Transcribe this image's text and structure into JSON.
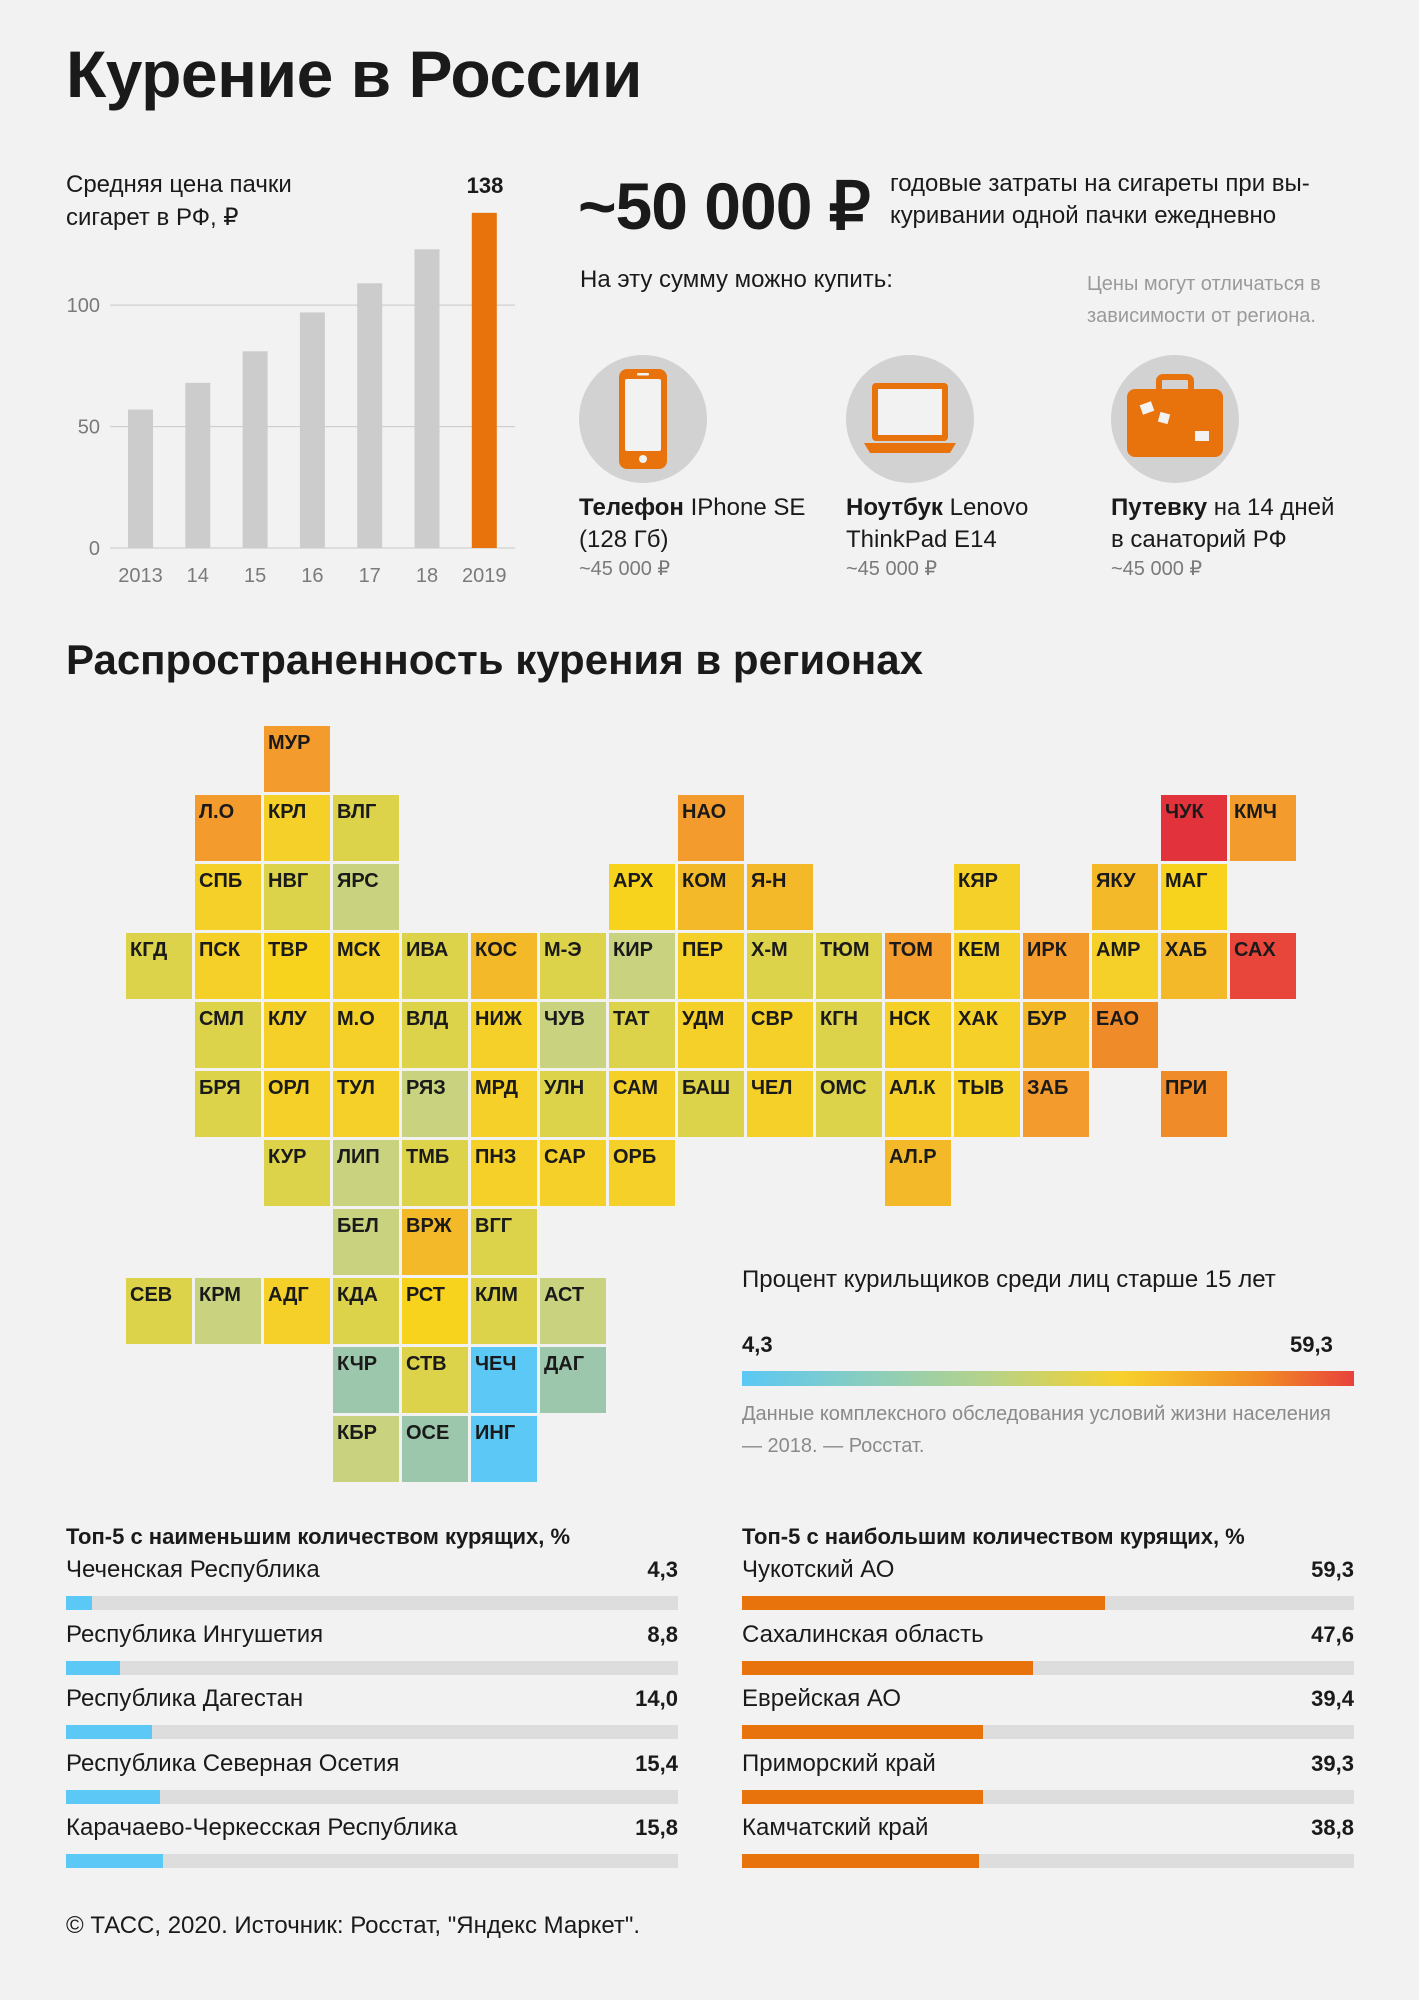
{
  "title": "Курение в России",
  "price_chart": {
    "label": "Средняя цена пачки сигарет в РФ, ₽",
    "highlight_value": "138"
  },
  "chart_data": [
    {
      "type": "bar",
      "categories": [
        "2013",
        "14",
        "15",
        "16",
        "17",
        "18",
        "2019"
      ],
      "values": [
        57,
        68,
        81,
        97,
        109,
        123,
        138
      ],
      "ylim": [
        0,
        140
      ],
      "yticks": [
        "0",
        "50",
        "100"
      ],
      "grid": true,
      "colors": {
        "default": "#cccccc",
        "highlight": "#e8720c"
      }
    },
    {
      "type": "bar",
      "title": "Топ-5 с наименьшим количеством курящих, %",
      "categories": [
        "Чеченская Республика",
        "Республика Ингушетия",
        "Республика Дагестан",
        "Республика Северная Осетия",
        "Карачаево-Черкесская Республика"
      ],
      "values": [
        4.3,
        8.8,
        14.0,
        15.4,
        15.8
      ],
      "labels": [
        "4,3",
        "8,8",
        "14,0",
        "15,4",
        "15,8"
      ],
      "xlim": [
        0,
        100
      ],
      "color": "#5bc8f5"
    },
    {
      "type": "bar",
      "title": "Топ-5 с наибольшим количеством курящих, %",
      "categories": [
        "Чукотский АО",
        "Сахалинская область",
        "Еврейская АО",
        "Приморский край",
        "Камчатский край"
      ],
      "values": [
        59.3,
        47.6,
        39.4,
        39.3,
        38.8
      ],
      "labels": [
        "59,3",
        "47,6",
        "39,4",
        "39,3",
        "38,8"
      ],
      "xlim": [
        0,
        100
      ],
      "color": "#e8720c"
    },
    {
      "type": "heatmap",
      "title": "Распространенность курения в регионах",
      "legend_title": "Процент курильщиков среди лиц старше 15 лет",
      "range_labels": [
        "4,3",
        "59,3"
      ],
      "colors": {
        "blue": "#5bc8f5",
        "teal": "#9cc7ac",
        "olive": "#c9d27e",
        "yellowgreen": "#dcd34a",
        "yellow": "#f4d028",
        "gold": "#f8d31e",
        "amber": "#f4b929",
        "orange": "#f39b2c",
        "deep-orange": "#f08b2a",
        "red": "#e8463b",
        "crimson": "#e2323c"
      },
      "cells": [
        {
          "code": "МУР",
          "row": 0,
          "col": 2,
          "color": "orange"
        },
        {
          "code": "Л.О",
          "row": 1,
          "col": 1,
          "color": "orange"
        },
        {
          "code": "КРЛ",
          "row": 1,
          "col": 2,
          "color": "yellow"
        },
        {
          "code": "ВЛГ",
          "row": 1,
          "col": 3,
          "color": "yellowgreen"
        },
        {
          "code": "НАО",
          "row": 1,
          "col": 8,
          "color": "orange"
        },
        {
          "code": "ЧУК",
          "row": 1,
          "col": 15,
          "color": "crimson"
        },
        {
          "code": "КМЧ",
          "row": 1,
          "col": 16,
          "color": "orange"
        },
        {
          "code": "СПБ",
          "row": 2,
          "col": 1,
          "color": "yellow"
        },
        {
          "code": "НВГ",
          "row": 2,
          "col": 2,
          "color": "yellowgreen"
        },
        {
          "code": "ЯРС",
          "row": 2,
          "col": 3,
          "color": "olive"
        },
        {
          "code": "АРХ",
          "row": 2,
          "col": 7,
          "color": "gold"
        },
        {
          "code": "КОМ",
          "row": 2,
          "col": 8,
          "color": "amber"
        },
        {
          "code": "Я-Н",
          "row": 2,
          "col": 9,
          "color": "amber"
        },
        {
          "code": "КЯР",
          "row": 2,
          "col": 12,
          "color": "yellow"
        },
        {
          "code": "ЯКУ",
          "row": 2,
          "col": 14,
          "color": "amber"
        },
        {
          "code": "МАГ",
          "row": 2,
          "col": 15,
          "color": "gold"
        },
        {
          "code": "КГД",
          "row": 3,
          "col": 0,
          "color": "yellowgreen"
        },
        {
          "code": "ПСК",
          "row": 3,
          "col": 1,
          "color": "yellow"
        },
        {
          "code": "ТВР",
          "row": 3,
          "col": 2,
          "color": "gold"
        },
        {
          "code": "МСК",
          "row": 3,
          "col": 3,
          "color": "yellow"
        },
        {
          "code": "ИВА",
          "row": 3,
          "col": 4,
          "color": "yellowgreen"
        },
        {
          "code": "КОС",
          "row": 3,
          "col": 5,
          "color": "amber"
        },
        {
          "code": "М-Э",
          "row": 3,
          "col": 6,
          "color": "yellowgreen"
        },
        {
          "code": "КИР",
          "row": 3,
          "col": 7,
          "color": "olive"
        },
        {
          "code": "ПЕР",
          "row": 3,
          "col": 8,
          "color": "yellow"
        },
        {
          "code": "Х-М",
          "row": 3,
          "col": 9,
          "color": "yellowgreen"
        },
        {
          "code": "ТЮМ",
          "row": 3,
          "col": 10,
          "color": "yellowgreen"
        },
        {
          "code": "ТОМ",
          "row": 3,
          "col": 11,
          "color": "orange"
        },
        {
          "code": "КЕМ",
          "row": 3,
          "col": 12,
          "color": "yellow"
        },
        {
          "code": "ИРК",
          "row": 3,
          "col": 13,
          "color": "orange"
        },
        {
          "code": "АМР",
          "row": 3,
          "col": 14,
          "color": "yellow"
        },
        {
          "code": "ХАБ",
          "row": 3,
          "col": 15,
          "color": "amber"
        },
        {
          "code": "САХ",
          "row": 3,
          "col": 16,
          "color": "red"
        },
        {
          "code": "СМЛ",
          "row": 4,
          "col": 1,
          "color": "yellowgreen"
        },
        {
          "code": "КЛУ",
          "row": 4,
          "col": 2,
          "color": "yellow"
        },
        {
          "code": "М.О",
          "row": 4,
          "col": 3,
          "color": "yellow"
        },
        {
          "code": "ВЛД",
          "row": 4,
          "col": 4,
          "color": "yellowgreen"
        },
        {
          "code": "НИЖ",
          "row": 4,
          "col": 5,
          "color": "yellow"
        },
        {
          "code": "ЧУВ",
          "row": 4,
          "col": 6,
          "color": "olive"
        },
        {
          "code": "ТАТ",
          "row": 4,
          "col": 7,
          "color": "yellowgreen"
        },
        {
          "code": "УДМ",
          "row": 4,
          "col": 8,
          "color": "yellow"
        },
        {
          "code": "СВР",
          "row": 4,
          "col": 9,
          "color": "yellow"
        },
        {
          "code": "КГН",
          "row": 4,
          "col": 10,
          "color": "yellowgreen"
        },
        {
          "code": "НСК",
          "row": 4,
          "col": 11,
          "color": "yellow"
        },
        {
          "code": "ХАК",
          "row": 4,
          "col": 12,
          "color": "yellow"
        },
        {
          "code": "БУР",
          "row": 4,
          "col": 13,
          "color": "amber"
        },
        {
          "code": "ЕАО",
          "row": 4,
          "col": 14,
          "color": "deep-orange"
        },
        {
          "code": "БРЯ",
          "row": 5,
          "col": 1,
          "color": "yellowgreen"
        },
        {
          "code": "ОРЛ",
          "row": 5,
          "col": 2,
          "color": "yellow"
        },
        {
          "code": "ТУЛ",
          "row": 5,
          "col": 3,
          "color": "yellow"
        },
        {
          "code": "РЯЗ",
          "row": 5,
          "col": 4,
          "color": "olive"
        },
        {
          "code": "МРД",
          "row": 5,
          "col": 5,
          "color": "yellow"
        },
        {
          "code": "УЛН",
          "row": 5,
          "col": 6,
          "color": "yellowgreen"
        },
        {
          "code": "САМ",
          "row": 5,
          "col": 7,
          "color": "yellow"
        },
        {
          "code": "БАШ",
          "row": 5,
          "col": 8,
          "color": "yellowgreen"
        },
        {
          "code": "ЧЕЛ",
          "row": 5,
          "col": 9,
          "color": "yellow"
        },
        {
          "code": "ОМС",
          "row": 5,
          "col": 10,
          "color": "yellowgreen"
        },
        {
          "code": "АЛ.К",
          "row": 5,
          "col": 11,
          "color": "yellow"
        },
        {
          "code": "ТЫВ",
          "row": 5,
          "col": 12,
          "color": "yellow"
        },
        {
          "code": "ЗАБ",
          "row": 5,
          "col": 13,
          "color": "orange"
        },
        {
          "code": "ПРИ",
          "row": 5,
          "col": 15,
          "color": "deep-orange"
        },
        {
          "code": "КУР",
          "row": 6,
          "col": 2,
          "color": "yellowgreen"
        },
        {
          "code": "ЛИП",
          "row": 6,
          "col": 3,
          "color": "olive"
        },
        {
          "code": "ТМБ",
          "row": 6,
          "col": 4,
          "color": "yellowgreen"
        },
        {
          "code": "ПНЗ",
          "row": 6,
          "col": 5,
          "color": "yellow"
        },
        {
          "code": "САР",
          "row": 6,
          "col": 6,
          "color": "yellow"
        },
        {
          "code": "ОРБ",
          "row": 6,
          "col": 7,
          "color": "yellow"
        },
        {
          "code": "АЛ.Р",
          "row": 6,
          "col": 11,
          "color": "amber"
        },
        {
          "code": "БЕЛ",
          "row": 7,
          "col": 3,
          "color": "olive"
        },
        {
          "code": "ВРЖ",
          "row": 7,
          "col": 4,
          "color": "amber"
        },
        {
          "code": "ВГГ",
          "row": 7,
          "col": 5,
          "color": "yellowgreen"
        },
        {
          "code": "СЕВ",
          "row": 8,
          "col": 0,
          "color": "yellowgreen"
        },
        {
          "code": "КРМ",
          "row": 8,
          "col": 1,
          "color": "olive"
        },
        {
          "code": "АДГ",
          "row": 8,
          "col": 2,
          "color": "yellow"
        },
        {
          "code": "КДА",
          "row": 8,
          "col": 3,
          "color": "yellowgreen"
        },
        {
          "code": "РСТ",
          "row": 8,
          "col": 4,
          "color": "gold"
        },
        {
          "code": "КЛМ",
          "row": 8,
          "col": 5,
          "color": "yellowgreen"
        },
        {
          "code": "АСТ",
          "row": 8,
          "col": 6,
          "color": "olive"
        },
        {
          "code": "КЧР",
          "row": 9,
          "col": 3,
          "color": "teal"
        },
        {
          "code": "СТВ",
          "row": 9,
          "col": 4,
          "color": "yellowgreen"
        },
        {
          "code": "ЧЕЧ",
          "row": 9,
          "col": 5,
          "color": "blue"
        },
        {
          "code": "ДАГ",
          "row": 9,
          "col": 6,
          "color": "teal"
        },
        {
          "code": "КБР",
          "row": 10,
          "col": 3,
          "color": "olive"
        },
        {
          "code": "ОСЕ",
          "row": 10,
          "col": 4,
          "color": "teal"
        },
        {
          "code": "ИНГ",
          "row": 10,
          "col": 5,
          "color": "blue"
        }
      ]
    }
  ],
  "spending": {
    "amount": "~50 000 ₽",
    "description": "годовые затраты на сигареты при вы-куривании одной пачки ежедневно",
    "can_buy_label": "На эту сумму можно купить:",
    "note": "Цены могут отличаться в зависимости от региона.",
    "items": [
      {
        "icon": "smartphone-icon",
        "name_bold": "Телефон",
        "name_rest": " IPhone SE (128 Гб)",
        "price": "~45 000 ₽"
      },
      {
        "icon": "laptop-icon",
        "name_bold": "Ноутбук",
        "name_rest": " Lenovo ThinkPad E14",
        "price": "~45 000 ₽"
      },
      {
        "icon": "suitcase-icon",
        "name_bold": "Путевку",
        "name_rest": " на 14 дней в санаторий РФ",
        "price": "~45 000 ₽"
      }
    ]
  },
  "regions_title": "Распространенность курения в регионах",
  "legend": {
    "title": "Процент курильщиков среди лиц старше 15 лет",
    "min": "4,3",
    "max": "59,3",
    "source": "Данные комплексного обследования условий жизни населения — 2018. — Росстат."
  },
  "lowest_title": "Топ-5 с наименьшим количеством курящих, %",
  "highest_title": "Топ-5 с наибольшим количеством курящих, %",
  "footer": "© ТАСС, 2020. Источник: Росстат, \"Яндекс Маркет\"."
}
